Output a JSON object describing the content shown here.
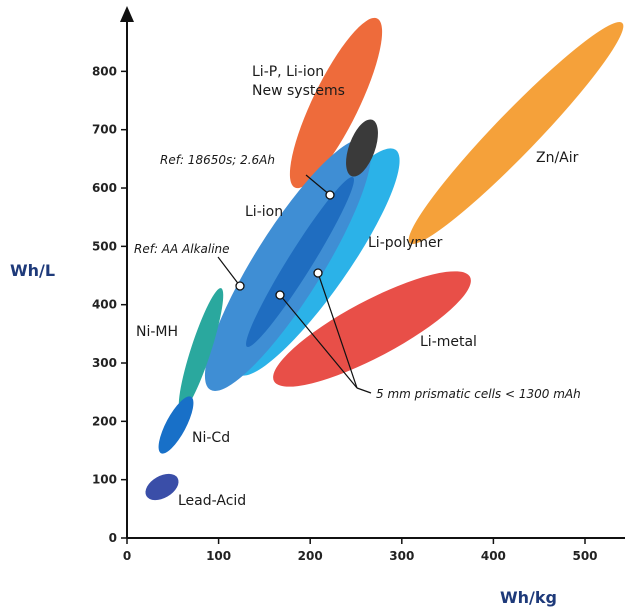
{
  "chart_data": {
    "type": "scatter",
    "title": "",
    "xlabel": "Wh/kg",
    "ylabel": "Wh/L",
    "xlim": [
      0,
      550
    ],
    "ylim": [
      0,
      850
    ],
    "xticks": [
      0,
      100,
      200,
      300,
      400,
      500
    ],
    "yticks": [
      0,
      100,
      200,
      300,
      400,
      500,
      600,
      700,
      800
    ],
    "grid": false,
    "regions": [
      {
        "name": "Li-P, Li-ion New systems",
        "label_lines": [
          "Li-P, Li-ion",
          "New systems"
        ],
        "color": "#ee6b3b",
        "x_range": [
          245,
          330
        ],
        "y_range": [
          560,
          840
        ]
      },
      {
        "name": "Zn/Air",
        "label_lines": [
          "Zn/Air"
        ],
        "color": "#f5a13a",
        "x_range": [
          315,
          530
        ],
        "y_range": [
          545,
          815
        ]
      },
      {
        "name": "Li-polymer",
        "label_lines": [
          "Li-polymer"
        ],
        "color": "#2bb2e8",
        "x_range": [
          150,
          285
        ],
        "y_range": [
          340,
          615
        ]
      },
      {
        "name": "Li-ion",
        "label_lines": [
          "Li-ion"
        ],
        "color": "#3f8ed4",
        "x_range": [
          95,
          250
        ],
        "y_range": [
          255,
          650
        ]
      },
      {
        "name": "Li-metal",
        "label_lines": [
          "Li-metal"
        ],
        "color": "#e84f48",
        "x_range": [
          160,
          380
        ],
        "y_range": [
          240,
          460
        ]
      },
      {
        "name": "Ni-MH",
        "label_lines": [
          "Ni-MH"
        ],
        "color": "#2aa89e",
        "x_range": [
          50,
          110
        ],
        "y_range": [
          210,
          415
        ]
      },
      {
        "name": "Ni-Cd",
        "label_lines": [
          "Ni-Cd"
        ],
        "color": "#1870c8",
        "x_range": [
          30,
          75
        ],
        "y_range": [
          135,
          235
        ]
      },
      {
        "name": "Lead-Acid",
        "label_lines": [
          "Lead-Acid"
        ],
        "color": "#3a4ea8",
        "x_range": [
          20,
          55
        ],
        "y_range": [
          50,
          105
        ]
      }
    ],
    "annotations": [
      {
        "text": "Ref: 18650s; 2.6Ah",
        "x": 220,
        "y": 580
      },
      {
        "text": "Ref: AA Alkaline",
        "x": 125,
        "y": 420
      },
      {
        "text": "5 mm prismatic cells < 1300 mAh",
        "points": [
          [
            165,
            410
          ],
          [
            205,
            445
          ]
        ]
      }
    ]
  }
}
